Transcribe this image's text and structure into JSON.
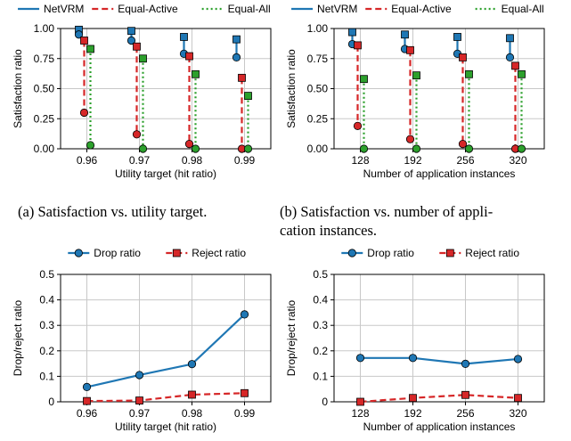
{
  "colors": {
    "netvrm": "#1f77b4",
    "equal_active": "#d62728",
    "equal_all": "#2ca02c",
    "drop": "#1f77b4",
    "reject": "#d62728",
    "grid": "#c8c8c8"
  },
  "captions": {
    "a": "(a)  Satisfaction vs. utility target.",
    "b_line1": "(b)  Satisfaction vs. number of appli-",
    "b_line2": "cation instances."
  },
  "chart_data": [
    {
      "type": "scatter",
      "style": "vertical range lines with endpoint markers",
      "panel": "a",
      "categories": [
        "0.96",
        "0.97",
        "0.98",
        "0.99"
      ],
      "xlabel": "Utility target (hit ratio)",
      "ylabel": "Satisfaction ratio",
      "ylim": [
        0,
        1
      ],
      "yticks": [
        "0.00",
        "0.25",
        "0.50",
        "0.75",
        "1.00"
      ],
      "grid": true,
      "legend": "top",
      "series": [
        {
          "name": "NetVRM",
          "top": [
            0.99,
            0.98,
            0.93,
            0.91
          ],
          "bottom": [
            0.95,
            0.9,
            0.79,
            0.76
          ]
        },
        {
          "name": "Equal-Active",
          "top": [
            0.9,
            0.85,
            0.77,
            0.59
          ],
          "bottom": [
            0.3,
            0.12,
            0.04,
            0.0
          ]
        },
        {
          "name": "Equal-All",
          "top": [
            0.83,
            0.75,
            0.62,
            0.44
          ],
          "bottom": [
            0.03,
            0.0,
            0.0,
            0.0
          ]
        }
      ]
    },
    {
      "type": "scatter",
      "style": "vertical range lines with endpoint markers",
      "panel": "b",
      "categories": [
        "128",
        "192",
        "256",
        "320"
      ],
      "xlabel": "Number of application instances",
      "ylabel": "Satisfaction ratio",
      "ylim": [
        0,
        1
      ],
      "yticks": [
        "0.00",
        "0.25",
        "0.50",
        "0.75",
        "1.00"
      ],
      "grid": true,
      "legend": "top",
      "series": [
        {
          "name": "NetVRM",
          "top": [
            0.97,
            0.95,
            0.93,
            0.92
          ],
          "bottom": [
            0.87,
            0.83,
            0.79,
            0.76
          ]
        },
        {
          "name": "Equal-Active",
          "top": [
            0.86,
            0.82,
            0.76,
            0.69
          ],
          "bottom": [
            0.19,
            0.08,
            0.04,
            0.0
          ]
        },
        {
          "name": "Equal-All",
          "top": [
            0.58,
            0.61,
            0.62,
            0.62
          ],
          "bottom": [
            0.0,
            0.0,
            0.0,
            0.0
          ]
        }
      ]
    },
    {
      "type": "line",
      "panel": "c",
      "categories": [
        "0.96",
        "0.97",
        "0.98",
        "0.99"
      ],
      "xlabel": "Utility target (hit ratio)",
      "ylabel": "Drop/reject ratio",
      "ylim": [
        0,
        0.5
      ],
      "yticks": [
        "0",
        "0.1",
        "0.2",
        "0.3",
        "0.4",
        "0.5"
      ],
      "grid": true,
      "legend": "top",
      "series": [
        {
          "name": "Drop ratio",
          "values": [
            0.058,
            0.105,
            0.148,
            0.343
          ]
        },
        {
          "name": "Reject ratio",
          "values": [
            0.003,
            0.005,
            0.028,
            0.034
          ]
        }
      ]
    },
    {
      "type": "line",
      "panel": "d",
      "categories": [
        "128",
        "192",
        "256",
        "320"
      ],
      "xlabel": "Number of application instances",
      "ylabel": "Drop/reject ratio",
      "ylim": [
        0,
        0.5
      ],
      "yticks": [
        "0",
        "0.1",
        "0.2",
        "0.3",
        "0.4",
        "0.5"
      ],
      "grid": true,
      "legend": "top",
      "series": [
        {
          "name": "Drop ratio",
          "values": [
            0.172,
            0.172,
            0.149,
            0.168
          ]
        },
        {
          "name": "Reject ratio",
          "values": [
            0.0,
            0.015,
            0.027,
            0.015
          ]
        }
      ]
    }
  ]
}
